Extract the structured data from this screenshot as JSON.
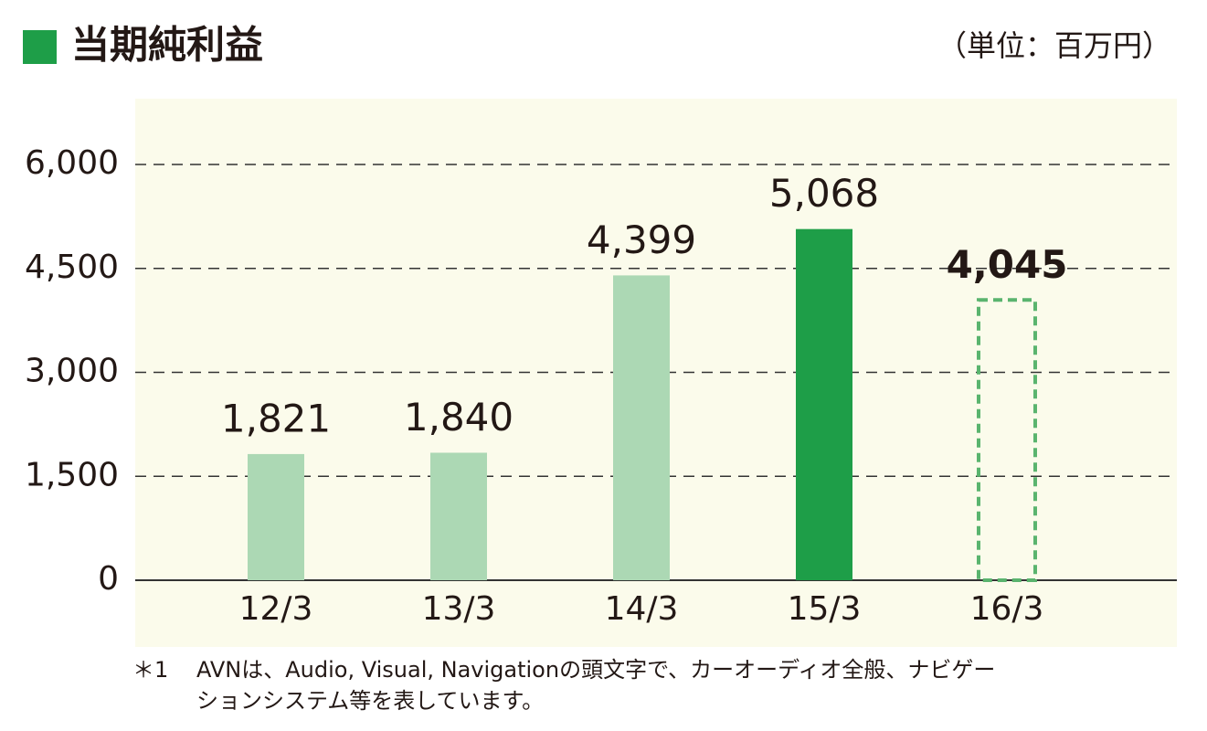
{
  "chart_data": {
    "type": "bar",
    "title": "当期純利益",
    "unit_label": "（単位：百万円）",
    "categories": [
      "12/3",
      "13/3",
      "14/3",
      "15/3",
      "16/3"
    ],
    "values": [
      1821,
      1840,
      4399,
      5068,
      4045
    ],
    "value_labels": [
      "1,821",
      "1,840",
      "4,399",
      "5,068",
      "4,045"
    ],
    "colors": [
      "#acd8b4",
      "#acd8b4",
      "#acd8b4",
      "#1e9e48",
      "#5ab46e"
    ],
    "styles": [
      "solid",
      "solid",
      "solid",
      "solid",
      "dashed"
    ],
    "ylim": [
      0,
      6000
    ],
    "yticks": [
      0,
      {
        "value": 1500,
        "label": "1,500"
      },
      {
        "value": 3000,
        "label": "3,000"
      },
      {
        "value": 4500,
        "label": "4,500"
      },
      {
        "value": 6000,
        "label": "6,000"
      }
    ],
    "grid": true,
    "footnote_marker": "＊1",
    "footnote_lines": [
      "AVNは、Audio, Visual, Navigationの頭文字で、カーオーディオ全般、ナビゲー",
      "ションシステム等を表しています。"
    ]
  }
}
